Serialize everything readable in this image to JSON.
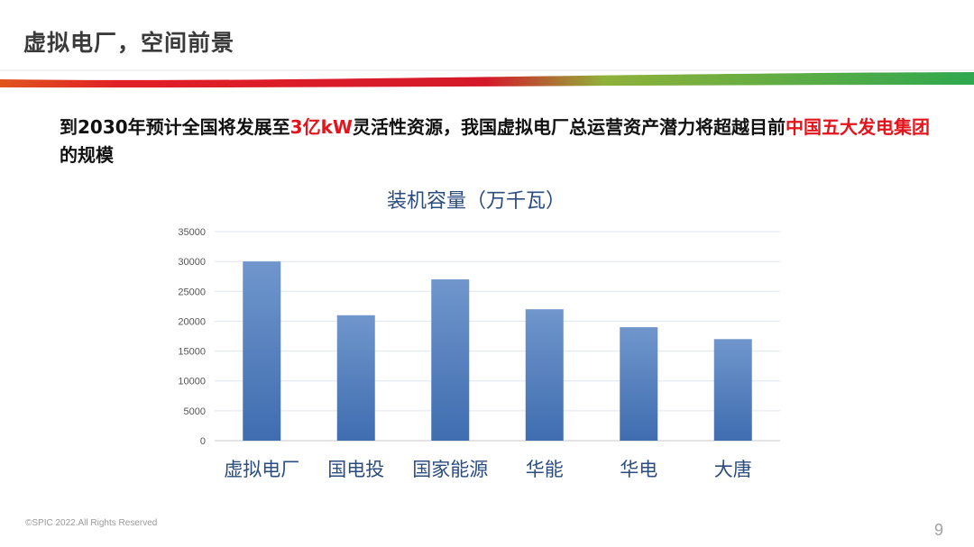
{
  "slide": {
    "title": "虚拟电厂，空间前景",
    "statement": {
      "part1": "到2030年预计全国将发展至",
      "highlight1": "3亿kW",
      "part2": "灵活性资源，我国虚拟电厂总运营资产潜力将超越目前",
      "highlight2": "中国五大发电集团",
      "part3": " 的规模"
    },
    "footer": "©SPIC 2022.All Rights Reserved",
    "page_number": "9"
  },
  "colors": {
    "title_text": "#3a3a3a",
    "highlight": "#e3141b",
    "bar_top": "#7096cc",
    "bar_bottom": "#3f6db0",
    "band_red": "#e11f26",
    "band_green": "#2fa84f",
    "chart_title": "#2b4c7e"
  },
  "chart_data": {
    "type": "bar",
    "title": "装机容量（万千瓦）",
    "categories": [
      "虚拟电厂",
      "国电投",
      "国家能源",
      "华能",
      "华电",
      "大唐"
    ],
    "values": [
      30000,
      21000,
      27000,
      22000,
      19000,
      17000
    ],
    "xlabel": "",
    "ylabel": "",
    "ylim": [
      0,
      35000
    ],
    "yticks": [
      0,
      5000,
      10000,
      15000,
      20000,
      25000,
      30000,
      35000
    ],
    "grid": true,
    "legend": "none"
  }
}
